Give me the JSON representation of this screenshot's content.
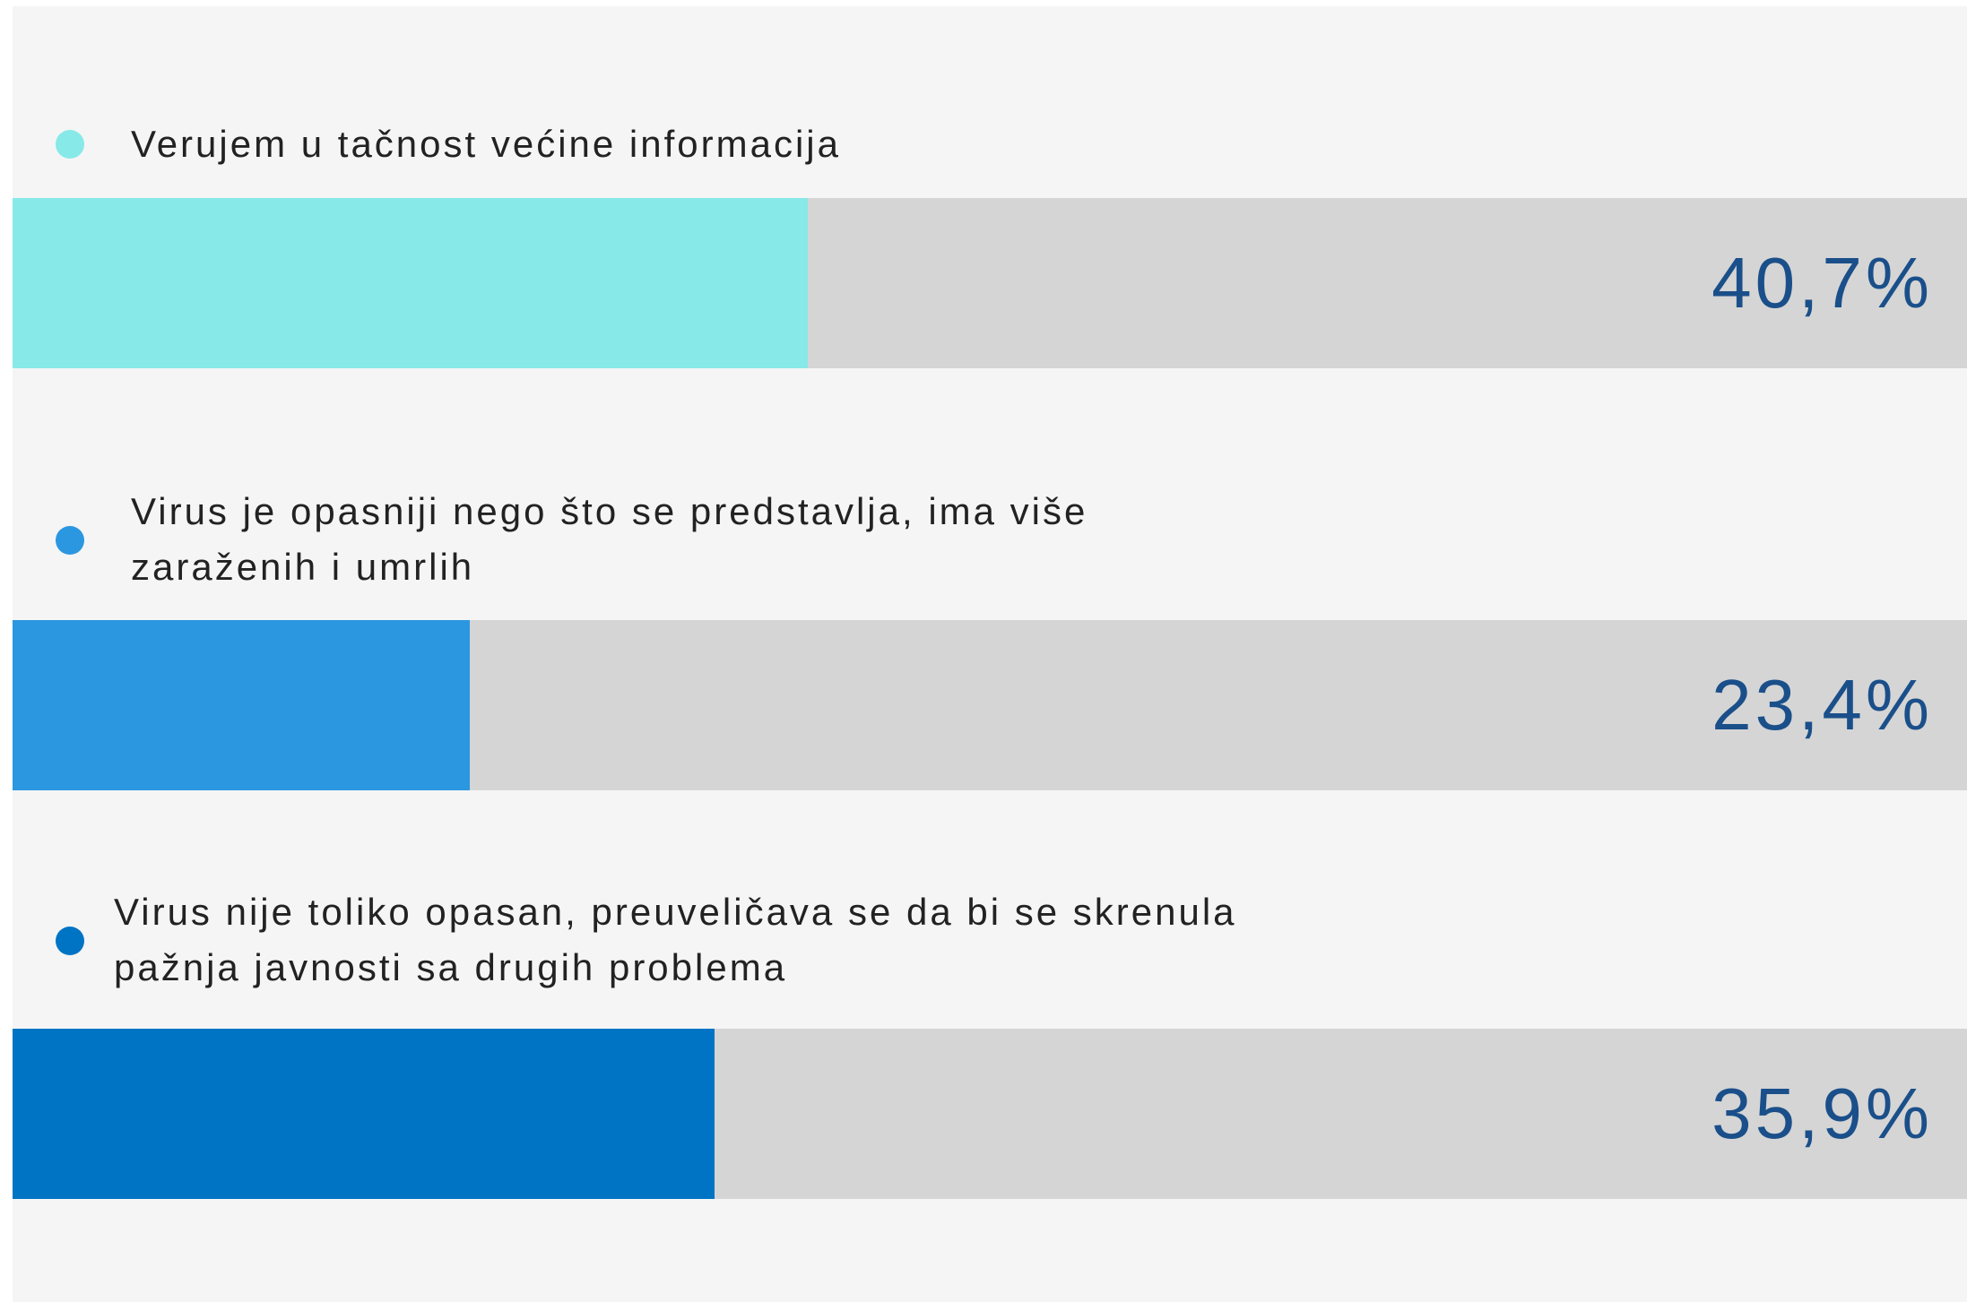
{
  "chart_data": {
    "type": "progress-bar",
    "xlim": [
      0,
      100
    ],
    "categories": [
      "Verujem u tačnost većine informacija",
      "Virus je opasniji nego što se predstavlja, ima više zaraženih i umrlih",
      "Virus nije toliko opasan, preuveličava se da bi se skrenula pažnja javnosti sa drugih problema"
    ],
    "values": [
      40.7,
      23.4,
      35.9
    ],
    "value_labels": [
      "40,7%",
      "23,4%",
      "35,9%"
    ],
    "colors": [
      "#88e9e9",
      "#2b97e0",
      "#0074c4"
    ],
    "track_color": "#d5d5d5"
  }
}
